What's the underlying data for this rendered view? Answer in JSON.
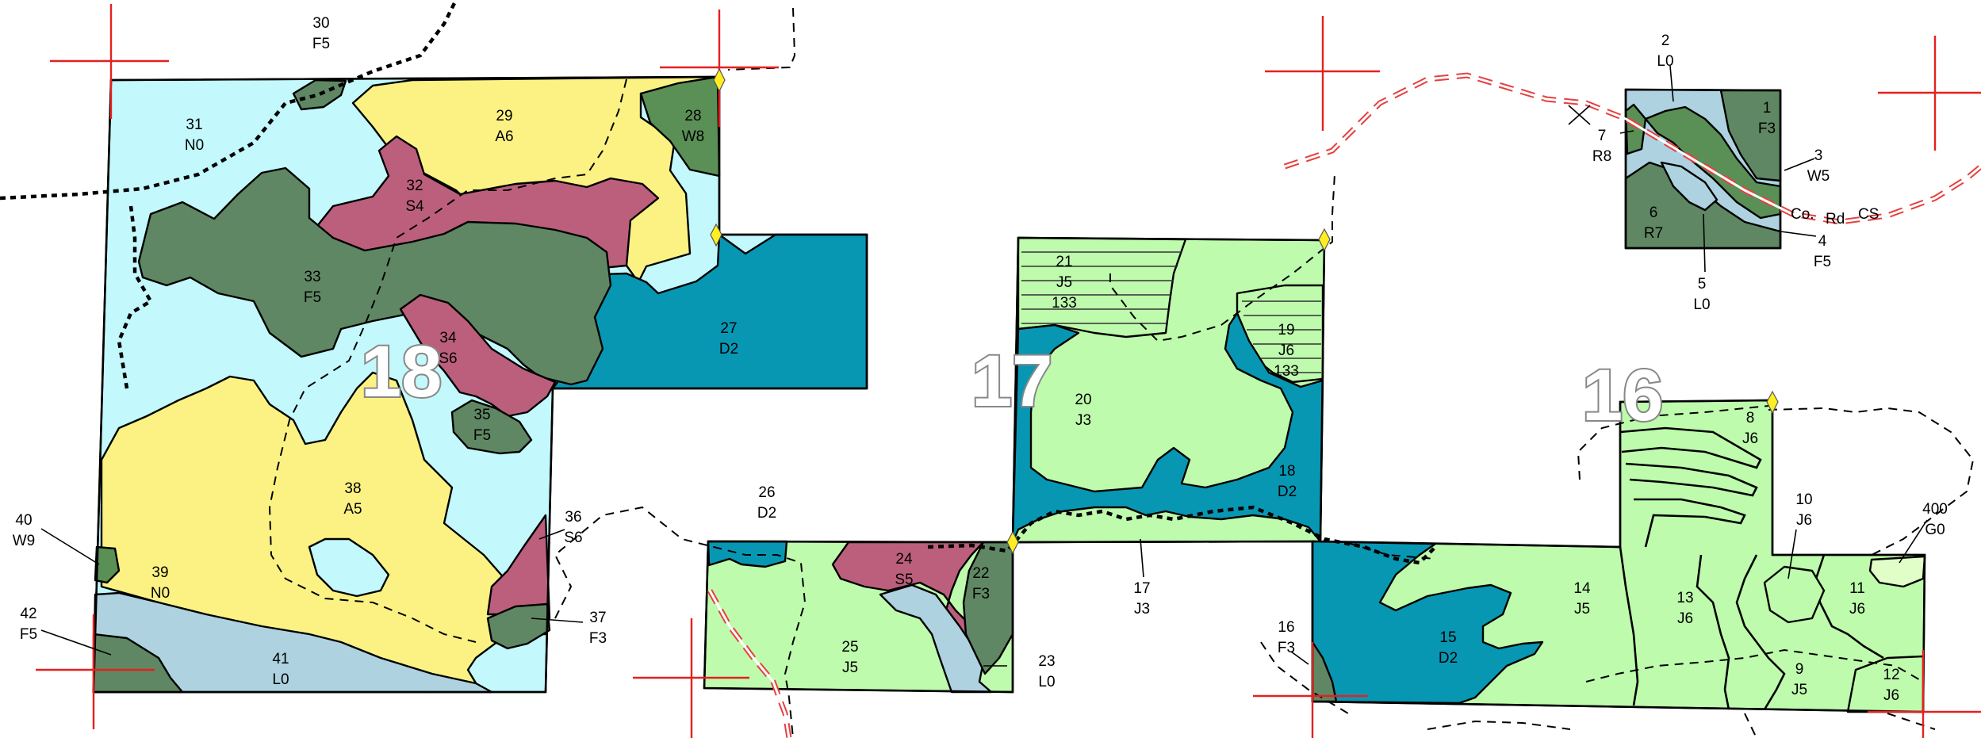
{
  "colors": {
    "N0": "#c3f8fc",
    "A": "#fcf284",
    "S": "#bc5f7c",
    "F": "#5f8763",
    "W8": "#5a8f55",
    "D2": "#0897b3",
    "J": "#befbad",
    "J6_light": "#dcfdc8",
    "L0": "#aed2e0",
    "R": "#5f8763",
    "G0": "#e1fdc8",
    "road": "#e64040",
    "grid_cross": "#e62020",
    "corner_marker": "#ffee22"
  },
  "sections": [
    {
      "id": "s18",
      "label": "18"
    },
    {
      "id": "s17",
      "label": "17"
    },
    {
      "id": "s16",
      "label": "16"
    }
  ],
  "road_labels": {
    "co": "Co.",
    "rd": "Rd",
    "cs": "CS"
  },
  "stands": [
    {
      "id": "st30",
      "num": "30",
      "code": "F5"
    },
    {
      "id": "st31",
      "num": "31",
      "code": "N0"
    },
    {
      "id": "st29",
      "num": "29",
      "code": "A6"
    },
    {
      "id": "st28",
      "num": "28",
      "code": "W8"
    },
    {
      "id": "st32",
      "num": "32",
      "code": "S4"
    },
    {
      "id": "st33",
      "num": "33",
      "code": "F5"
    },
    {
      "id": "st27",
      "num": "27",
      "code": "D2"
    },
    {
      "id": "st34",
      "num": "34",
      "code": "S6"
    },
    {
      "id": "st35",
      "num": "35",
      "code": "F5"
    },
    {
      "id": "st38",
      "num": "38",
      "code": "A5"
    },
    {
      "id": "st36",
      "num": "36",
      "code": "S6"
    },
    {
      "id": "st37",
      "num": "37",
      "code": "F3"
    },
    {
      "id": "st40",
      "num": "40",
      "code": "W9"
    },
    {
      "id": "st39",
      "num": "39",
      "code": "N0"
    },
    {
      "id": "st42",
      "num": "42",
      "code": "F5"
    },
    {
      "id": "st41",
      "num": "41",
      "code": "L0"
    },
    {
      "id": "st26",
      "num": "26",
      "code": "D2"
    },
    {
      "id": "st24",
      "num": "24",
      "code": "S5"
    },
    {
      "id": "st22",
      "num": "22",
      "code": "F3"
    },
    {
      "id": "st25",
      "num": "25",
      "code": "J5"
    },
    {
      "id": "st23",
      "num": "23",
      "code": "L0"
    },
    {
      "id": "st21",
      "num": "21",
      "code": "J5",
      "extra": "133"
    },
    {
      "id": "st19",
      "num": "19",
      "code": "J6",
      "extra": "133"
    },
    {
      "id": "st20",
      "num": "20",
      "code": "J3"
    },
    {
      "id": "st18",
      "num": "18",
      "code": "D2"
    },
    {
      "id": "st17",
      "num": "17",
      "code": "J3"
    },
    {
      "id": "st16",
      "num": "16",
      "code": "F3"
    },
    {
      "id": "st15",
      "num": "15",
      "code": "D2"
    },
    {
      "id": "st14",
      "num": "14",
      "code": "J5"
    },
    {
      "id": "st13",
      "num": "13",
      "code": "J6"
    },
    {
      "id": "st8",
      "num": "8",
      "code": "J6"
    },
    {
      "id": "st10",
      "num": "10",
      "code": "J6"
    },
    {
      "id": "st400",
      "num": "400",
      "code": "G0"
    },
    {
      "id": "st11",
      "num": "11",
      "code": "J6"
    },
    {
      "id": "st9",
      "num": "9",
      "code": "J5"
    },
    {
      "id": "st12",
      "num": "12",
      "code": "J6"
    },
    {
      "id": "st2",
      "num": "2",
      "code": "L0"
    },
    {
      "id": "st1",
      "num": "1",
      "code": "F3"
    },
    {
      "id": "st7",
      "num": "7",
      "code": "R8"
    },
    {
      "id": "st3",
      "num": "3",
      "code": "W5"
    },
    {
      "id": "st6",
      "num": "6",
      "code": "R7"
    },
    {
      "id": "st4",
      "num": "4",
      "code": "F5"
    },
    {
      "id": "st5",
      "num": "5",
      "code": "L0"
    }
  ]
}
